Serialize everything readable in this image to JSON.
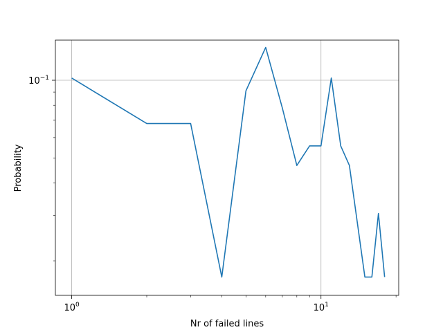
{
  "chart_data": {
    "type": "line",
    "title": "",
    "xlabel": "Nr of failed lines",
    "ylabel": "Probability",
    "xscale": "log",
    "yscale": "log",
    "xlim": [
      0.86,
      20.5
    ],
    "ylim": [
      0.0147,
      0.143
    ],
    "grid": "major",
    "x_ticks": [
      {
        "value": 1,
        "base": "10",
        "exp": "0"
      },
      {
        "value": 10,
        "base": "10",
        "exp": "1"
      }
    ],
    "y_ticks": [
      {
        "value": 0.1,
        "base": "10",
        "exp": "−1"
      }
    ],
    "series": [
      {
        "color": "#1f77b4",
        "x": [
          1,
          2,
          3,
          4,
          5,
          6,
          7,
          8,
          9,
          10,
          11,
          12,
          13,
          15,
          16,
          17,
          18
        ],
        "y": [
          0.102,
          0.068,
          0.068,
          0.0173,
          0.091,
          0.134,
          0.078,
          0.0468,
          0.0557,
          0.0557,
          0.102,
          0.0557,
          0.0468,
          0.0173,
          0.0173,
          0.0305,
          0.0173
        ]
      }
    ]
  }
}
